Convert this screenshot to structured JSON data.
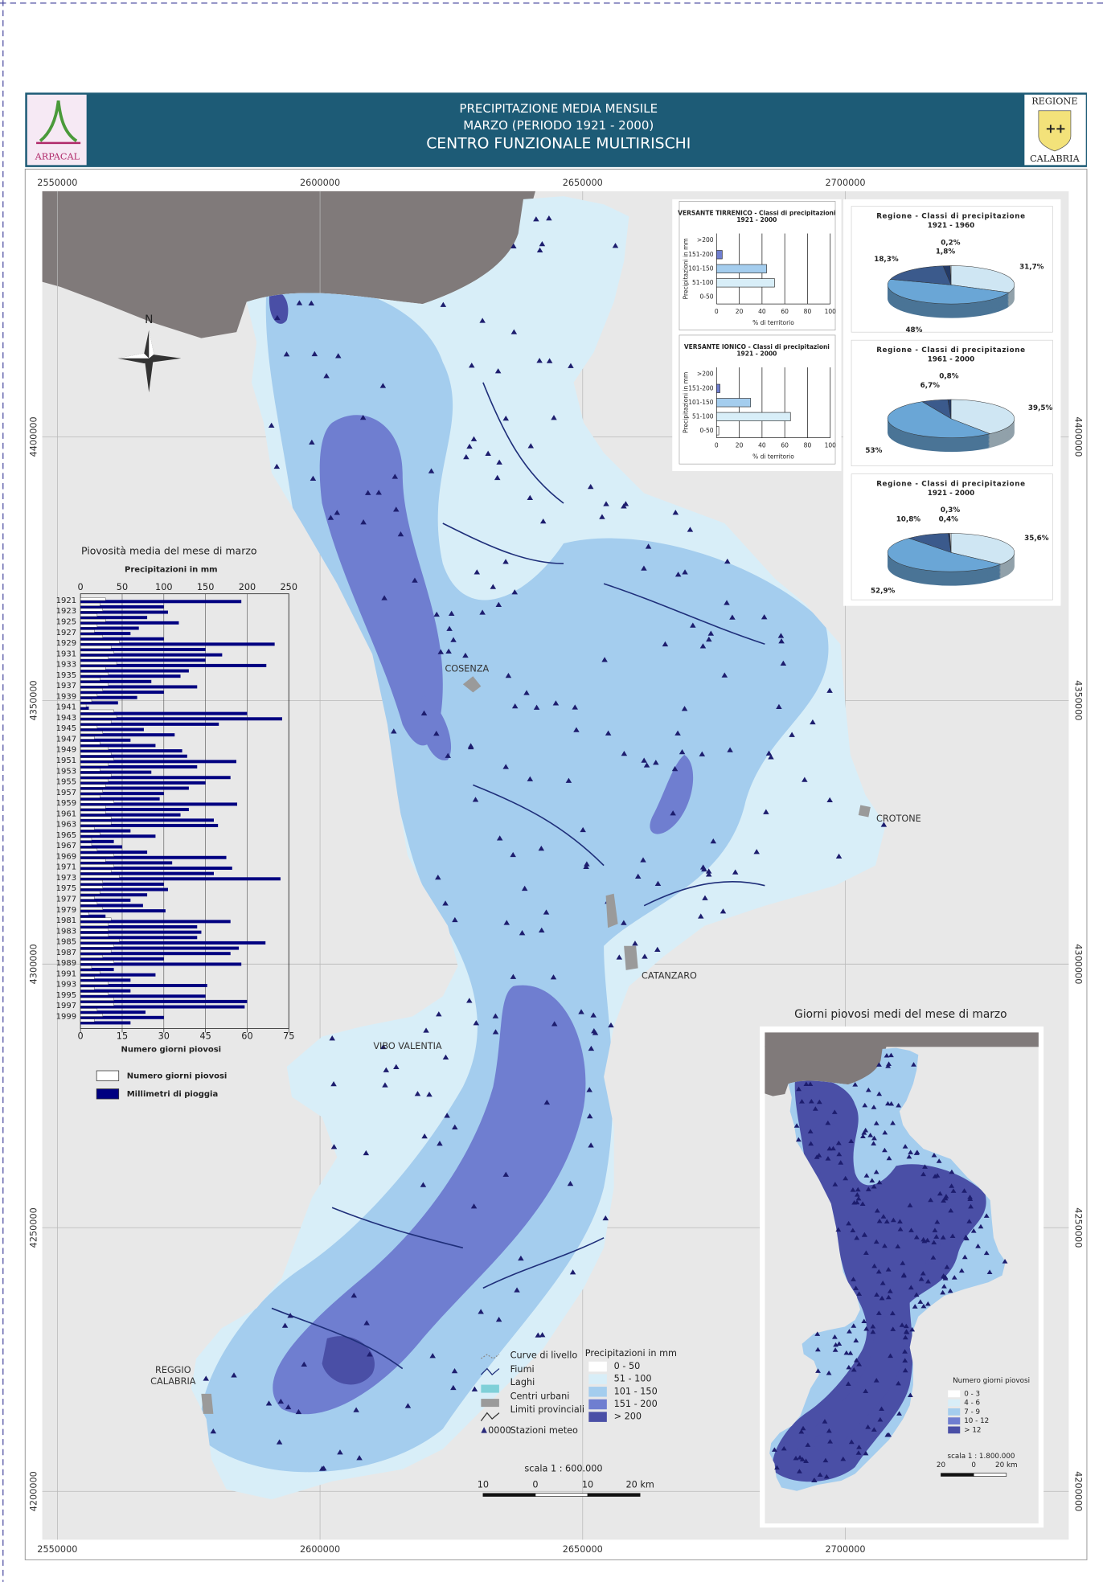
{
  "header": {
    "title_lines": [
      "PRECIPITAZIONE MEDIA MENSILE",
      "MARZO (PERIODO 1921 - 2000)",
      "CENTRO FUNZIONALE MULTIRISCHI"
    ],
    "logo_left": "ARPACAL",
    "logo_right": [
      "REGIONE",
      "CALABRIA"
    ]
  },
  "map": {
    "xticks": [
      2550000,
      2600000,
      2650000,
      2700000
    ],
    "yticks": [
      4400000,
      4350000,
      4300000,
      4250000,
      4200000
    ],
    "north": "N",
    "places": [
      "COSENZA",
      "CROTONE",
      "CATANZARO",
      "VIBO VALENTIA",
      "REGGIO",
      "CALABRIA"
    ],
    "legend": {
      "items": [
        "Curve di livello",
        "Fiumi",
        "Laghi",
        "Centri urbani",
        "Limiti provinciali",
        "Stazioni meteo"
      ],
      "station_code": "0000",
      "title": "Precipitazioni in mm",
      "classes": [
        {
          "label": "0 - 50",
          "color": "#ffffff"
        },
        {
          "label": "51 - 100",
          "color": "#d8eef8"
        },
        {
          "label": "101 - 150",
          "color": "#a4cdee"
        },
        {
          "label": "151 - 200",
          "color": "#6f7ed0"
        },
        {
          "label": "> 200",
          "color": "#4a4fa6"
        }
      ]
    },
    "scale": {
      "label": "scala 1 : 600.000",
      "ticks": [
        "10",
        "0",
        "10",
        "20  km"
      ]
    }
  },
  "inset": {
    "title": "Giorni piovosi medi del mese di marzo",
    "legend_title": "Numero giorni piovosi",
    "classes": [
      {
        "label": "0 - 3",
        "color": "#ffffff"
      },
      {
        "label": "4 - 6",
        "color": "#d8eef8"
      },
      {
        "label": "7 - 9",
        "color": "#a4cdee"
      },
      {
        "label": "10 - 12",
        "color": "#6f7ed0"
      },
      {
        "label": "> 12",
        "color": "#4a4fa6"
      }
    ],
    "scale": {
      "label": "scala 1 : 1.800.000",
      "ticks": [
        "20",
        "0",
        "20  km"
      ]
    }
  },
  "chart_data": [
    {
      "type": "bar",
      "orientation": "horizontal",
      "title": "Piovosità media del mese di marzo",
      "xlabel": "Precipitazioni in mm",
      "x2label": "Numero giorni piovosi",
      "categories": [
        "1921",
        null,
        "1923",
        null,
        "1925",
        null,
        "1927",
        null,
        "1929",
        null,
        "1931",
        null,
        "1933",
        null,
        "1935",
        null,
        "1937",
        null,
        "1939",
        null,
        "1941",
        null,
        "1943",
        null,
        "1945",
        null,
        "1947",
        null,
        "1949",
        null,
        "1951",
        null,
        "1953",
        null,
        "1955",
        null,
        "1957",
        null,
        "1959",
        null,
        "1961",
        null,
        "1963",
        null,
        "1965",
        null,
        "1967",
        null,
        "1969",
        null,
        "1971",
        null,
        "1973",
        null,
        "1975",
        null,
        "1977",
        null,
        "1979",
        null,
        "1981",
        null,
        "1983",
        null,
        "1985",
        null,
        "1987",
        null,
        "1989",
        null,
        "1991",
        null,
        "1993",
        null,
        "1995",
        null,
        "1997",
        null,
        "1999",
        null
      ],
      "xlim": [
        0,
        250
      ],
      "xticks": [
        0,
        50,
        100,
        150,
        200,
        250
      ],
      "x2lim": [
        0,
        75
      ],
      "x2ticks": [
        0,
        15,
        30,
        45,
        60,
        75
      ],
      "series": [
        {
          "name": "Numero giorni piovosi",
          "color": "#ffffff",
          "axis": "x2",
          "values": [
            9,
            7,
            8,
            6,
            9,
            6,
            5,
            8,
            14,
            11,
            12,
            10,
            13,
            9,
            10,
            7,
            10,
            8,
            6,
            4,
            2,
            12,
            13,
            11,
            6,
            8,
            5,
            7,
            10,
            11,
            12,
            10,
            7,
            11,
            10,
            9,
            8,
            7,
            12,
            9,
            9,
            11,
            11,
            5,
            7,
            4,
            4,
            6,
            12,
            9,
            12,
            11,
            14,
            8,
            8,
            7,
            5,
            6,
            8,
            3,
            11,
            10,
            10,
            10,
            14,
            12,
            11,
            8,
            12,
            4,
            7,
            5,
            10,
            5,
            10,
            12,
            12,
            6,
            8,
            5
          ]
        },
        {
          "name": "Millimetri di pioggia",
          "color": "#000080",
          "values": [
            193,
            100,
            105,
            80,
            118,
            70,
            60,
            100,
            233,
            150,
            170,
            150,
            223,
            130,
            120,
            85,
            140,
            100,
            68,
            45,
            10,
            200,
            242,
            166,
            76,
            113,
            60,
            90,
            122,
            128,
            187,
            140,
            85,
            180,
            150,
            130,
            100,
            95,
            188,
            130,
            120,
            160,
            165,
            60,
            90,
            40,
            50,
            80,
            175,
            110,
            182,
            160,
            240,
            100,
            105,
            80,
            60,
            75,
            102,
            30,
            180,
            140,
            145,
            140,
            222,
            190,
            180,
            100,
            193,
            40,
            90,
            60,
            152,
            60,
            150,
            200,
            197,
            78,
            100,
            60
          ]
        }
      ]
    },
    {
      "type": "bar",
      "orientation": "horizontal",
      "title": "VERSANTE TIRRENICO - Classi di precipitazioni",
      "subtitle": "1921 - 2000",
      "ylabel": "Precipitazioni in mm",
      "xlabel": "% di territorio",
      "categories": [
        ">200",
        "151-200",
        "101-150",
        "51-100",
        "0-50"
      ],
      "values": [
        0,
        5,
        44,
        51,
        0
      ],
      "colors": [
        "#4a4fa6",
        "#6f7ed0",
        "#a4cdee",
        "#d8eef8",
        "#ffffff"
      ],
      "xlim": [
        0,
        100
      ],
      "xticks": [
        0,
        20,
        40,
        60,
        80,
        100
      ],
      "grid": true
    },
    {
      "type": "bar",
      "orientation": "horizontal",
      "title": "VERSANTE IONICO - Classi di precipitazioni",
      "subtitle": "1921 - 2000",
      "ylabel": "Precipitazioni in mm",
      "xlabel": "% di territorio",
      "categories": [
        ">200",
        "151-200",
        "101-150",
        "51-100",
        "0-50"
      ],
      "values": [
        0,
        3,
        30,
        65,
        2
      ],
      "colors": [
        "#4a4fa6",
        "#6f7ed0",
        "#a4cdee",
        "#d8eef8",
        "#ffffff"
      ],
      "xlim": [
        0,
        100
      ],
      "xticks": [
        0,
        20,
        40,
        60,
        80,
        100
      ],
      "grid": true
    },
    {
      "type": "pie",
      "title": "Regione - Classi di precipitazione",
      "subtitle": "1921 - 1960",
      "values": [
        31.7,
        48,
        18.3,
        1.8,
        0.2
      ],
      "value_labels": [
        "31,7%",
        "48%",
        "18,3%",
        "1,8%",
        "0,2%"
      ],
      "colors": [
        "#cfe6f3",
        "#6aa6d6",
        "#3b5a8c",
        "#243a66",
        "#ffffff"
      ]
    },
    {
      "type": "pie",
      "title": "Regione - Classi di precipitazione",
      "subtitle": "1961 - 2000",
      "values": [
        39.5,
        53,
        6.7,
        0.8
      ],
      "value_labels": [
        "39,5%",
        "53%",
        "6,7%",
        "0,8%"
      ],
      "colors": [
        "#cfe6f3",
        "#6aa6d6",
        "#3b5a8c",
        "#243a66"
      ]
    },
    {
      "type": "pie",
      "title": "Regione - Classi di precipitazione",
      "subtitle": "1921 - 2000",
      "values": [
        35.6,
        52.9,
        10.8,
        0.4,
        0.3
      ],
      "value_labels": [
        "35,6%",
        "52,9%",
        "10,8%",
        "0,4%",
        "0,3%"
      ],
      "colors": [
        "#cfe6f3",
        "#6aa6d6",
        "#3b5a8c",
        "#243a66",
        "#ffffff"
      ]
    }
  ]
}
